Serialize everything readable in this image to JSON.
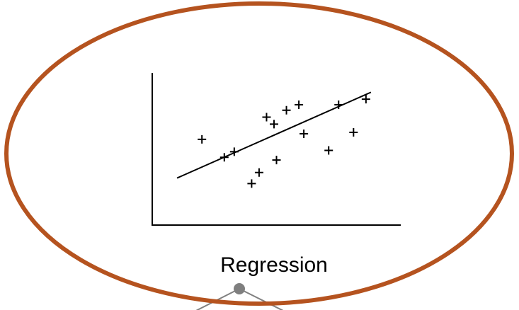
{
  "diagram": {
    "label": "Regression",
    "colors": {
      "ellipse_stroke": "#b5531f",
      "axes": "#000000",
      "points": "#000000",
      "trend_line": "#000000",
      "connector": "#808080",
      "node_fill": "#7f7f7f"
    },
    "icons": {
      "point_marker": "plus-icon"
    }
  },
  "chart_data": {
    "type": "scatter",
    "title": "",
    "xlabel": "",
    "ylabel": "",
    "x": [
      1.0,
      1.9,
      2.3,
      3.0,
      3.3,
      3.6,
      3.9,
      4.0,
      4.4,
      4.9,
      5.1,
      6.1,
      6.5,
      7.1,
      7.6
    ],
    "y": [
      5.2,
      3.9,
      4.3,
      2.0,
      2.8,
      6.8,
      6.3,
      3.7,
      7.3,
      7.7,
      5.6,
      4.4,
      7.7,
      5.7,
      8.1
    ],
    "trend_line": {
      "x": [
        0.0,
        7.8
      ],
      "y": [
        2.4,
        8.6
      ]
    },
    "xlim": [
      -1.0,
      9.0
    ],
    "ylim": [
      -1.0,
      10.0
    ],
    "grid": false,
    "legend": false
  }
}
